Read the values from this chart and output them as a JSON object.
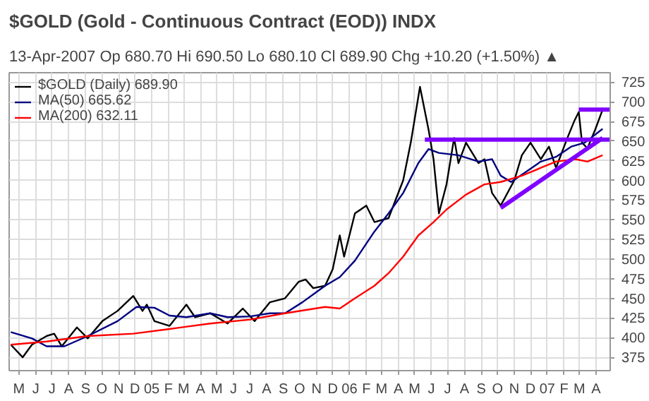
{
  "chart_data": {
    "type": "line",
    "title": "$GOLD (Gold - Continuous Contract (EOD)) INDX",
    "subtitle": "13-Apr-2007   Op 680.70  Hi 690.50  Lo 680.10  Cl 689.90  Chg +10.20 (+1.50%) ▲",
    "xlim": [
      "2004-04-13",
      "2007-04-27"
    ],
    "xticks": [
      {
        "value": "2004-05-01",
        "label": "M"
      },
      {
        "value": "2004-06-01",
        "label": "J"
      },
      {
        "value": "2004-07-01",
        "label": "J"
      },
      {
        "value": "2004-08-01",
        "label": "A"
      },
      {
        "value": "2004-09-01",
        "label": "S"
      },
      {
        "value": "2004-10-01",
        "label": "O"
      },
      {
        "value": "2004-11-01",
        "label": "N"
      },
      {
        "value": "2004-12-01",
        "label": "D"
      },
      {
        "value": "2005-01-01",
        "label": "05"
      },
      {
        "value": "2005-02-01",
        "label": "F"
      },
      {
        "value": "2005-03-01",
        "label": "M"
      },
      {
        "value": "2005-04-01",
        "label": "A"
      },
      {
        "value": "2005-05-01",
        "label": "M"
      },
      {
        "value": "2005-06-01",
        "label": "J"
      },
      {
        "value": "2005-07-01",
        "label": "J"
      },
      {
        "value": "2005-08-01",
        "label": "A"
      },
      {
        "value": "2005-09-01",
        "label": "S"
      },
      {
        "value": "2005-10-01",
        "label": "O"
      },
      {
        "value": "2005-11-01",
        "label": "N"
      },
      {
        "value": "2005-12-01",
        "label": "D"
      },
      {
        "value": "2006-01-01",
        "label": "06"
      },
      {
        "value": "2006-02-01",
        "label": "F"
      },
      {
        "value": "2006-03-01",
        "label": "M"
      },
      {
        "value": "2006-04-01",
        "label": "A"
      },
      {
        "value": "2006-05-01",
        "label": "M"
      },
      {
        "value": "2006-06-01",
        "label": "J"
      },
      {
        "value": "2006-07-01",
        "label": "J"
      },
      {
        "value": "2006-08-01",
        "label": "A"
      },
      {
        "value": "2006-09-01",
        "label": "S"
      },
      {
        "value": "2006-10-01",
        "label": "O"
      },
      {
        "value": "2006-11-01",
        "label": "N"
      },
      {
        "value": "2006-12-01",
        "label": "D"
      },
      {
        "value": "2007-01-01",
        "label": "07"
      },
      {
        "value": "2007-02-01",
        "label": "F"
      },
      {
        "value": "2007-03-01",
        "label": "M"
      },
      {
        "value": "2007-04-01",
        "label": "A"
      }
    ],
    "ylim": [
      358,
      737
    ],
    "yticks": [
      375,
      400,
      425,
      450,
      475,
      500,
      525,
      550,
      575,
      600,
      625,
      650,
      675,
      700,
      725
    ],
    "grid": true,
    "legend": "top left",
    "series": [
      {
        "name": "$GOLD (Daily) 689.90",
        "color": "#000000",
        "x": [
          "2004-04-16",
          "2004-05-08",
          "2004-05-25",
          "2004-06-21",
          "2004-07-05",
          "2004-07-19",
          "2004-08-16",
          "2004-09-05",
          "2004-10-02",
          "2004-10-30",
          "2004-11-28",
          "2004-12-15",
          "2004-12-23",
          "2005-01-06",
          "2005-02-03",
          "2005-03-06",
          "2005-03-22",
          "2005-04-19",
          "2005-05-21",
          "2005-06-18",
          "2005-07-10",
          "2005-08-07",
          "2005-09-04",
          "2005-09-29",
          "2005-10-12",
          "2005-10-26",
          "2005-11-17",
          "2005-12-01",
          "2005-12-14",
          "2005-12-22",
          "2006-01-11",
          "2006-02-01",
          "2006-02-16",
          "2006-03-14",
          "2006-04-10",
          "2006-04-24",
          "2006-05-11",
          "2006-05-27",
          "2006-06-05",
          "2006-06-15",
          "2006-06-29",
          "2006-07-13",
          "2006-07-21",
          "2006-08-04",
          "2006-08-27",
          "2006-09-07",
          "2006-09-21",
          "2006-10-07",
          "2006-11-01",
          "2006-11-15",
          "2006-12-01",
          "2006-12-20",
          "2007-01-04",
          "2007-01-17",
          "2007-02-07",
          "2007-02-20",
          "2007-02-28",
          "2007-03-06",
          "2007-03-16",
          "2007-03-30",
          "2007-04-13"
        ],
        "values": [
          391,
          375,
          391,
          402,
          405,
          389,
          413,
          399,
          421,
          434,
          453,
          434,
          442,
          421,
          415,
          442,
          426,
          431,
          418,
          437,
          421,
          445,
          450,
          471,
          474,
          463,
          466,
          487,
          530,
          503,
          558,
          568,
          547,
          552,
          600,
          648,
          719,
          664,
          627,
          558,
          595,
          654,
          622,
          648,
          622,
          627,
          584,
          568,
          600,
          632,
          648,
          627,
          643,
          616,
          654,
          676,
          687,
          648,
          641,
          664,
          689.9
        ]
      },
      {
        "name": "MA(50) 665.62",
        "color": "#000080",
        "x": [
          "2004-04-16",
          "2004-05-25",
          "2004-06-21",
          "2004-07-24",
          "2004-09-05",
          "2004-10-30",
          "2004-12-04",
          "2005-01-06",
          "2005-02-03",
          "2005-03-06",
          "2005-04-19",
          "2005-05-21",
          "2005-07-02",
          "2005-08-07",
          "2005-09-04",
          "2005-10-06",
          "2005-10-26",
          "2005-11-17",
          "2005-12-14",
          "2006-01-11",
          "2006-02-16",
          "2006-03-14",
          "2006-04-10",
          "2006-05-08",
          "2006-05-27",
          "2006-06-15",
          "2006-07-21",
          "2006-08-27",
          "2006-09-21",
          "2006-10-07",
          "2006-10-26",
          "2006-11-23",
          "2006-12-20",
          "2007-01-17",
          "2007-02-14",
          "2007-03-11",
          "2007-04-13"
        ],
        "values": [
          407,
          399,
          389,
          389,
          402,
          421,
          439,
          438,
          428,
          426,
          431,
          426,
          427,
          431,
          431,
          445,
          455,
          466,
          477,
          498,
          535,
          558,
          584,
          622,
          640,
          635,
          632,
          624,
          627,
          606,
          598,
          611,
          624,
          630,
          643,
          648,
          665.62
        ]
      },
      {
        "name": "MA(200) 632.11",
        "color": "#ff0000",
        "x": [
          "2004-04-16",
          "2004-06-21",
          "2004-09-05",
          "2004-11-28",
          "2005-02-03",
          "2005-04-19",
          "2005-07-02",
          "2005-09-04",
          "2005-11-17",
          "2005-12-14",
          "2006-01-11",
          "2006-02-16",
          "2006-03-14",
          "2006-04-10",
          "2006-05-08",
          "2006-06-05",
          "2006-06-29",
          "2006-08-04",
          "2006-09-07",
          "2006-10-07",
          "2006-11-15",
          "2006-12-20",
          "2007-01-17",
          "2007-02-22",
          "2007-03-16",
          "2007-04-13"
        ],
        "values": [
          391,
          395,
          402,
          405,
          411,
          418,
          423,
          431,
          439,
          437,
          450,
          466,
          482,
          503,
          530,
          547,
          563,
          582,
          595,
          598,
          606,
          616,
          624,
          627,
          624,
          632.11
        ]
      },
      {
        "color": "#8000ff",
        "x": [
          "2006-05-20",
          "2007-04-27"
        ],
        "values": [
          652,
          652
        ]
      },
      {
        "color": "#8000ff",
        "x": [
          "2007-02-28",
          "2007-04-27"
        ],
        "values": [
          690,
          690
        ]
      },
      {
        "color": "#8000ff",
        "x": [
          "2006-10-07",
          "2007-04-13"
        ],
        "values": [
          565,
          654
        ]
      }
    ]
  }
}
